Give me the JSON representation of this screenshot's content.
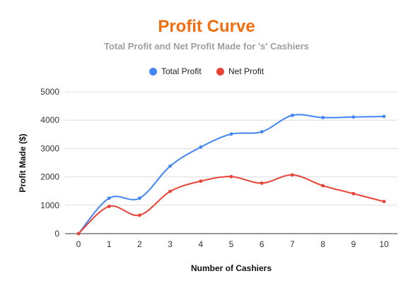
{
  "chart_data": {
    "type": "line",
    "title": "Profit Curve",
    "subtitle": "Total Profit and Net Profit Made for 's' Cashiers",
    "xlabel": "Number of Cashiers",
    "ylabel": "Profit Made ($)",
    "x": [
      0,
      1,
      2,
      3,
      4,
      5,
      6,
      7,
      8,
      9,
      10
    ],
    "x_tick_labels": [
      "0",
      "1",
      "2",
      "3",
      "4",
      "5",
      "6",
      "7",
      "8",
      "9",
      "10"
    ],
    "ylim": [
      0,
      5000
    ],
    "y_ticks": [
      0,
      1000,
      2000,
      3000,
      4000,
      5000
    ],
    "y_tick_labels": [
      "0",
      "1000",
      "2000",
      "3000",
      "4000",
      "5000"
    ],
    "grid": "horizontal",
    "legend_position": "top",
    "smooth": true,
    "series": [
      {
        "name": "Total Profit",
        "color": "#4285f4",
        "values": [
          0,
          1250,
          1250,
          2380,
          3050,
          3510,
          3590,
          4170,
          4090,
          4110,
          4130
        ]
      },
      {
        "name": "Net Profit",
        "color": "#ea4335",
        "values": [
          0,
          960,
          650,
          1490,
          1850,
          2010,
          1780,
          2070,
          1690,
          1410,
          1130
        ]
      }
    ]
  }
}
